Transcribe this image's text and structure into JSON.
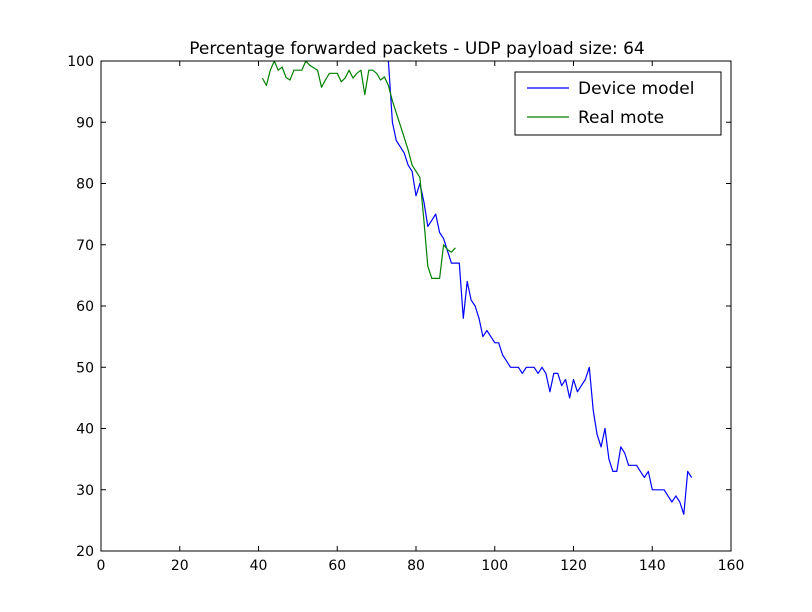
{
  "chart_data": {
    "type": "line",
    "title": "Percentage forwarded packets - UDP payload size: 64",
    "xlabel": "",
    "ylabel": "",
    "xlim": [
      0,
      160
    ],
    "ylim": [
      20,
      100
    ],
    "xticks": [
      0,
      20,
      40,
      60,
      80,
      100,
      120,
      140,
      160
    ],
    "yticks": [
      20,
      30,
      40,
      50,
      60,
      70,
      80,
      90,
      100
    ],
    "grid": false,
    "legend_position": "top-right",
    "series": [
      {
        "name": "Device model",
        "color": "#0000ff",
        "x": [
          72,
          73,
          74,
          75,
          76,
          77,
          78,
          79,
          80,
          81,
          82,
          83,
          84,
          85,
          86,
          87,
          88,
          89,
          90,
          91,
          92,
          93,
          94,
          95,
          96,
          97,
          98,
          99,
          100,
          101,
          102,
          103,
          104,
          105,
          106,
          107,
          108,
          109,
          110,
          111,
          112,
          113,
          114,
          115,
          116,
          117,
          118,
          119,
          120,
          121,
          122,
          123,
          124,
          125,
          126,
          127,
          128,
          129,
          130,
          131,
          132,
          133,
          134,
          135,
          136,
          137,
          138,
          139,
          140,
          141,
          142,
          143,
          144,
          145,
          146,
          147,
          148,
          149,
          150
        ],
        "y": [
          110,
          100,
          90,
          87,
          86,
          85,
          83,
          82,
          78,
          80,
          77,
          73,
          74,
          75,
          72,
          71,
          69,
          67,
          67,
          67,
          58,
          64,
          61,
          60,
          58,
          55,
          56,
          55,
          54,
          54,
          52,
          51,
          50,
          50,
          50,
          49,
          50,
          50,
          50,
          49,
          50,
          49,
          46,
          49,
          49,
          47,
          48,
          45,
          48,
          46,
          47,
          48,
          50,
          43,
          39,
          37,
          40,
          35,
          33,
          33,
          37,
          36,
          34,
          34,
          34,
          33,
          32,
          33,
          30,
          30,
          30,
          30,
          29,
          28,
          29,
          28,
          26,
          33,
          32
        ]
      },
      {
        "name": "Real mote",
        "color": "#008000",
        "x": [
          41,
          42,
          43,
          44,
          45,
          46,
          47,
          48,
          49,
          50,
          51,
          52,
          53,
          54,
          55,
          56,
          57,
          58,
          59,
          60,
          61,
          62,
          63,
          64,
          65,
          66,
          67,
          68,
          69,
          70,
          71,
          72,
          73,
          74,
          75,
          76,
          77,
          78,
          79,
          80,
          81,
          82,
          83,
          84,
          85,
          86,
          87,
          88,
          89,
          90
        ],
        "y": [
          97.2,
          96,
          98.5,
          100,
          98.5,
          99,
          97.3,
          96.9,
          98.5,
          98.5,
          98.5,
          100,
          99.3,
          98.9,
          98.5,
          95.7,
          96.9,
          98,
          98,
          98,
          96.6,
          97.2,
          98.5,
          97.2,
          98,
          98.5,
          94.5,
          98.5,
          98.5,
          98,
          96.9,
          97.4,
          96,
          93.5,
          91.5,
          89.5,
          87.5,
          85.5,
          83,
          82,
          81,
          74,
          66.5,
          64.5,
          64.5,
          64.5,
          70,
          69.2,
          68.8,
          69.5
        ]
      }
    ]
  }
}
